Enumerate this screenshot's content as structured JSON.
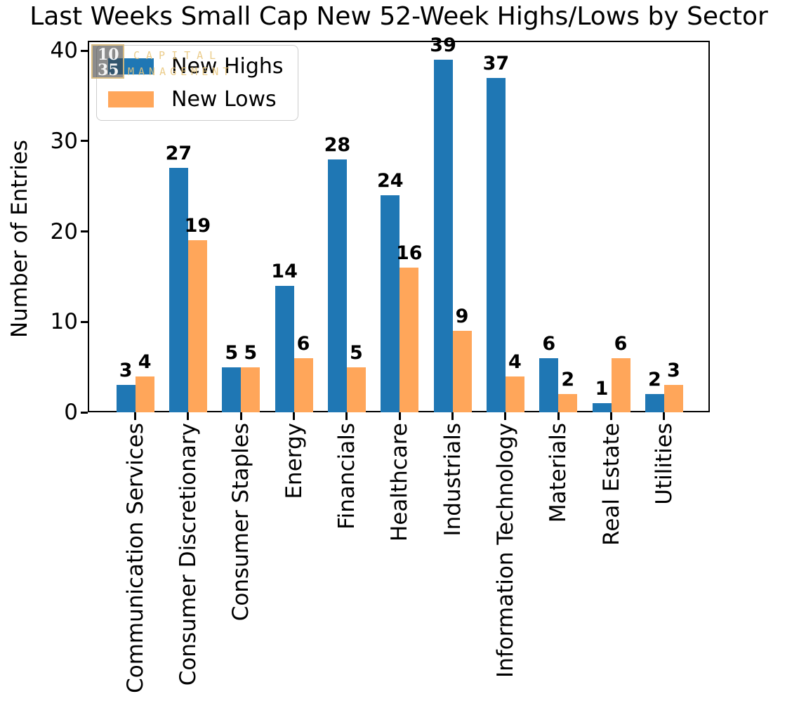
{
  "title": "Last Weeks Small Cap New 52-Week Highs/Lows by Sector",
  "watermark": {
    "top_number": "10",
    "bottom_number": "35",
    "line1": "CAPITAL",
    "line2": "MANAGEMENT"
  },
  "legend": {
    "position": "upper left",
    "entries": [
      "New Highs",
      "New Lows"
    ]
  },
  "colors": {
    "new_highs": "#1f77b4",
    "new_lows": "#ffa65a",
    "axis": "#000000",
    "legend_border": "#cccccc",
    "watermark_gold": "#e6c582"
  },
  "chart_data": {
    "type": "bar",
    "title": "Last Weeks Small Cap New 52-Week Highs/Lows by Sector",
    "xlabel": "",
    "ylabel": "Number of Entries",
    "categories": [
      "Communication Services",
      "Consumer Discretionary",
      "Consumer Staples",
      "Energy",
      "Financials",
      "Healthcare",
      "Industrials",
      "Information Technology",
      "Materials",
      "Real Estate",
      "Utilities"
    ],
    "series": [
      {
        "name": "New Highs",
        "color": "#1f77b4",
        "values": [
          3,
          27,
          5,
          14,
          28,
          24,
          39,
          37,
          6,
          1,
          2
        ]
      },
      {
        "name": "New Lows",
        "color": "#ffa65a",
        "values": [
          4,
          19,
          5,
          6,
          5,
          16,
          9,
          4,
          2,
          6,
          3
        ]
      }
    ],
    "bar_value_labels": true,
    "yticks": [
      0,
      10,
      20,
      30,
      40
    ],
    "ylim": [
      0,
      41.1
    ],
    "grid": false,
    "legend_position": "upper left",
    "x_tick_label_rotation": 90
  }
}
